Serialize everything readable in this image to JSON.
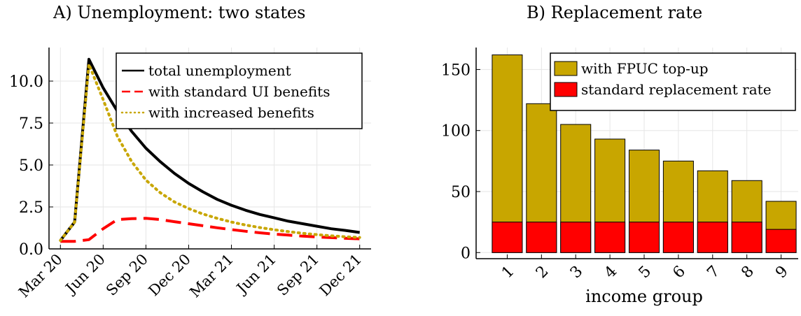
{
  "panel_titles": {
    "a": "A) Unemployment: two states",
    "b": "B) Replacement rate"
  },
  "chart_data": [
    {
      "type": "line",
      "title": "A) Unemployment: two states",
      "xlabel": "",
      "ylabel": "",
      "x_tick_labels": [
        "Mar 20",
        "Jun 20",
        "Sep 20",
        "Dec 20",
        "Mar 21",
        "Jun 21",
        "Sep 21",
        "Dec 21"
      ],
      "y_tick_labels": [
        "0.0",
        "2.5",
        "5.0",
        "7.5",
        "10.0"
      ],
      "y_ticks": [
        0,
        2.5,
        5.0,
        7.5,
        10.0
      ],
      "ylim": [
        0,
        12
      ],
      "x_month_index_range": [
        -0.8,
        21.8
      ],
      "grid": true,
      "legend_position": "top-right",
      "series": [
        {
          "name": "total unemployment",
          "color": "#000000",
          "style": "solid",
          "x": [
            0,
            1,
            2,
            3,
            4,
            5,
            6,
            7,
            8,
            9,
            10,
            11,
            12,
            13,
            14,
            15,
            16,
            17,
            18,
            19,
            20,
            21
          ],
          "y": [
            0.5,
            1.6,
            11.3,
            9.6,
            8.2,
            7.0,
            6.0,
            5.2,
            4.5,
            3.9,
            3.4,
            2.95,
            2.6,
            2.3,
            2.05,
            1.85,
            1.65,
            1.5,
            1.35,
            1.2,
            1.1,
            0.98
          ]
        },
        {
          "name": "with standard UI benefits",
          "color": "#ff0000",
          "style": "dashed",
          "x": [
            0,
            1,
            2,
            3,
            4,
            5,
            6,
            7,
            8,
            9,
            10,
            11,
            12,
            13,
            14,
            15,
            16,
            17,
            18,
            19,
            20,
            21
          ],
          "y": [
            0.45,
            0.45,
            0.55,
            1.2,
            1.75,
            1.8,
            1.82,
            1.75,
            1.62,
            1.5,
            1.38,
            1.26,
            1.15,
            1.05,
            0.96,
            0.88,
            0.82,
            0.76,
            0.71,
            0.67,
            0.63,
            0.6
          ]
        },
        {
          "name": "with increased benefits",
          "color": "#c8a600",
          "style": "dotted",
          "x": [
            0,
            1,
            2,
            3,
            4,
            5,
            6,
            7,
            8,
            9,
            10,
            11,
            12,
            13,
            14,
            15,
            16,
            17,
            18,
            19,
            20,
            21
          ],
          "y": [
            0.5,
            1.6,
            11.0,
            8.9,
            6.7,
            5.2,
            4.1,
            3.35,
            2.8,
            2.4,
            2.08,
            1.82,
            1.6,
            1.42,
            1.27,
            1.14,
            1.03,
            0.93,
            0.85,
            0.78,
            0.72,
            0.68
          ]
        }
      ]
    },
    {
      "type": "bar",
      "title": "B) Replacement rate",
      "xlabel": "income group",
      "ylabel": "",
      "categories": [
        "1",
        "2",
        "3",
        "4",
        "5",
        "6",
        "7",
        "8",
        "9"
      ],
      "y_tick_labels": [
        "0",
        "50",
        "100",
        "150"
      ],
      "y_ticks": [
        0,
        50,
        100,
        150
      ],
      "ylim": [
        -5,
        168
      ],
      "grid": true,
      "legend_position": "top-right",
      "series": [
        {
          "name": "with FPUC top-up",
          "color": "#c8a600",
          "values": [
            162,
            122,
            105,
            93,
            84,
            75,
            67,
            59,
            42
          ]
        },
        {
          "name": "standard replacement rate",
          "color": "#ff0000",
          "values": [
            25,
            25,
            25,
            25,
            25,
            25,
            25,
            25,
            19
          ]
        }
      ]
    }
  ]
}
